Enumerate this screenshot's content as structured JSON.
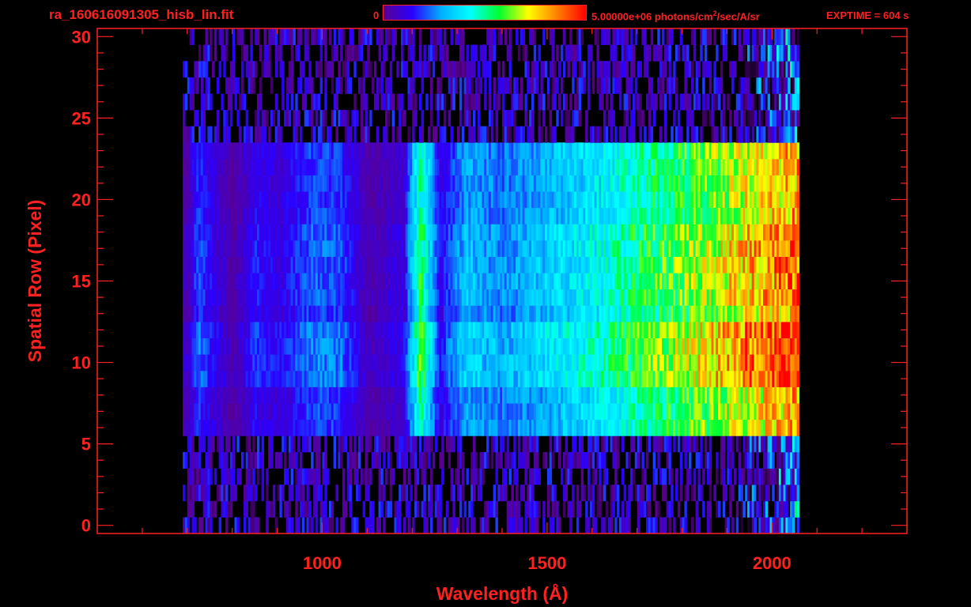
{
  "header": {
    "filename": "ra_160616091305_hisb_lin.fit",
    "colorbar_min_label": "0",
    "colorbar_max_label": "5.00000e+06 photons/cm",
    "colorbar_unit_sup": "2",
    "colorbar_unit_rest": "/sec/A/sr",
    "exptime_label": "EXPTIME = 604 s"
  },
  "colors": {
    "axis": "#ff2020",
    "background": "#000000",
    "colormap": [
      "#000000",
      "#5a0090",
      "#2a00ff",
      "#00b0ff",
      "#00ffff",
      "#00ff30",
      "#ffff00",
      "#ff8000",
      "#ff0000"
    ]
  },
  "chart_data": {
    "type": "heatmap",
    "title": "ra_160616091305_hisb_lin.fit",
    "xlabel": "Wavelength (Å)",
    "ylabel": "Spatial Row (Pixel)",
    "xlim": [
      500,
      2300
    ],
    "ylim": [
      -0.5,
      30.5
    ],
    "x_ticks": [
      1000,
      1500,
      2000
    ],
    "y_ticks": [
      0,
      5,
      10,
      15,
      20,
      25,
      30
    ],
    "x_tick_labels": [
      "1000",
      "1500",
      "2000"
    ],
    "y_tick_labels": [
      "0",
      "5",
      "10",
      "15",
      "20",
      "25",
      "30"
    ],
    "colorbar": {
      "min": 0,
      "max": 5000000,
      "unit": "photons/cm^2/sec/A/sr"
    },
    "intensity_scale": "linear",
    "spectrum_range_angstrom": [
      690,
      2060
    ],
    "bright_rows": [
      6,
      23
    ],
    "lyman_alpha_line_angstrom": 1216,
    "profile": [
      {
        "wavelength": 700,
        "level": 0.18
      },
      {
        "wavelength": 720,
        "level": 0.3
      },
      {
        "wavelength": 800,
        "level": 0.15
      },
      {
        "wavelength": 850,
        "level": 0.26
      },
      {
        "wavelength": 900,
        "level": 0.22
      },
      {
        "wavelength": 980,
        "level": 0.32
      },
      {
        "wavelength": 1040,
        "level": 0.3
      },
      {
        "wavelength": 1100,
        "level": 0.16
      },
      {
        "wavelength": 1180,
        "level": 0.22
      },
      {
        "wavelength": 1216,
        "level": 0.6
      },
      {
        "wavelength": 1260,
        "level": 0.24
      },
      {
        "wavelength": 1320,
        "level": 0.4
      },
      {
        "wavelength": 1400,
        "level": 0.35
      },
      {
        "wavelength": 1500,
        "level": 0.42
      },
      {
        "wavelength": 1600,
        "level": 0.48
      },
      {
        "wavelength": 1700,
        "level": 0.58
      },
      {
        "wavelength": 1800,
        "level": 0.66
      },
      {
        "wavelength": 1900,
        "level": 0.76
      },
      {
        "wavelength": 2000,
        "level": 0.85
      },
      {
        "wavelength": 2050,
        "level": 0.9
      }
    ]
  }
}
